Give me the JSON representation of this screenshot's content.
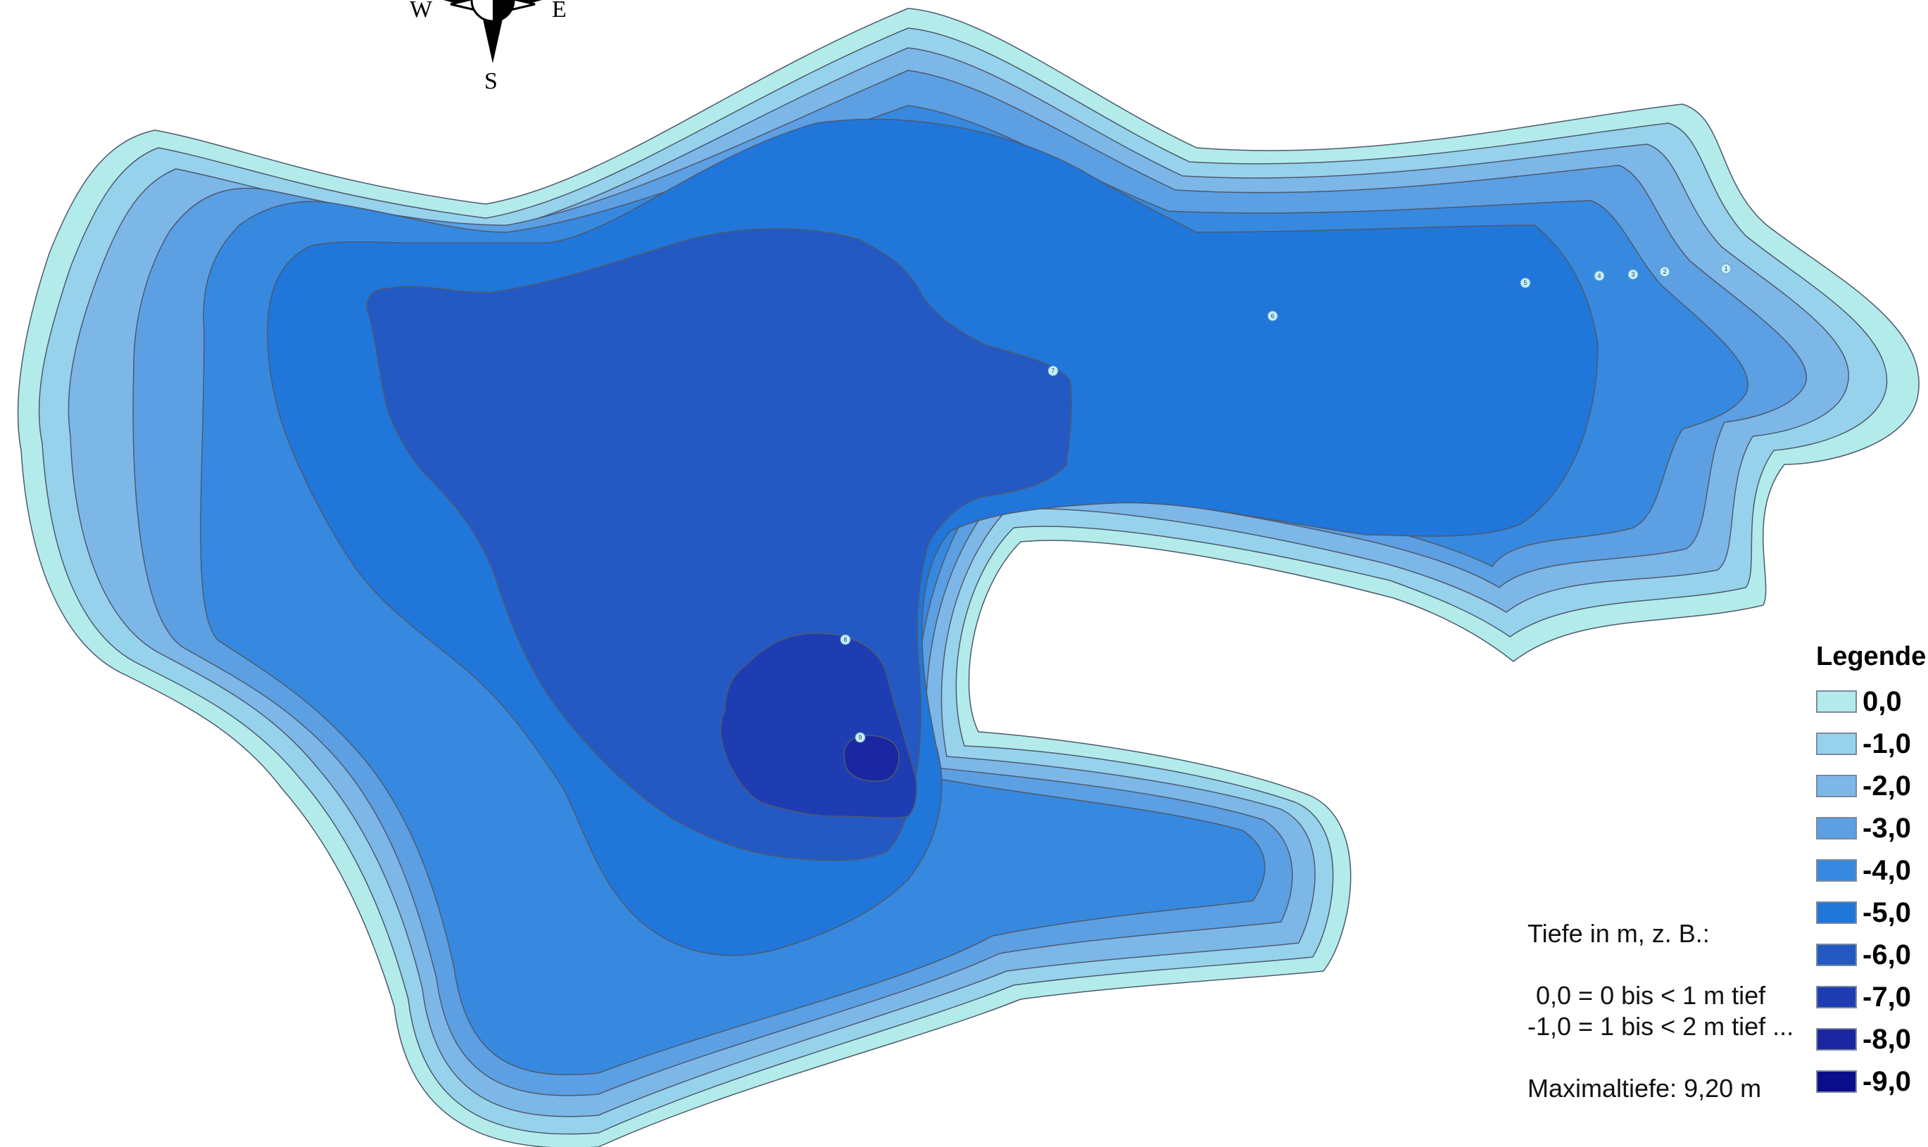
{
  "compass": {
    "west": "W",
    "east": "E",
    "south": "S"
  },
  "depth_labels": [
    "1",
    "2",
    "3",
    "4",
    "5",
    "6",
    "7",
    "8",
    "9"
  ],
  "legend": {
    "title": "Legende",
    "items": [
      {
        "label": "0,0",
        "color": "#b3ebea"
      },
      {
        "label": "-1,0",
        "color": "#97d2ec"
      },
      {
        "label": "-2,0",
        "color": "#7db7e8"
      },
      {
        "label": "-3,0",
        "color": "#5c9fe3"
      },
      {
        "label": "-4,0",
        "color": "#3789df"
      },
      {
        "label": "-5,0",
        "color": "#2176da"
      },
      {
        "label": "-6,0",
        "color": "#2459c4"
      },
      {
        "label": "-7,0",
        "color": "#1f3db2"
      },
      {
        "label": "-8,0",
        "color": "#1a27a0"
      },
      {
        "label": "-9,0",
        "color": "#0b0d8a"
      }
    ]
  },
  "notes": {
    "heading": "Tiefe in m, z. B.:",
    "line1": "0,0 = 0 bis < 1 m tief",
    "line2": "-1,0 = 1 bis < 2 m tief ...",
    "max_depth": "Maximaltiefe: 9,20 m"
  }
}
